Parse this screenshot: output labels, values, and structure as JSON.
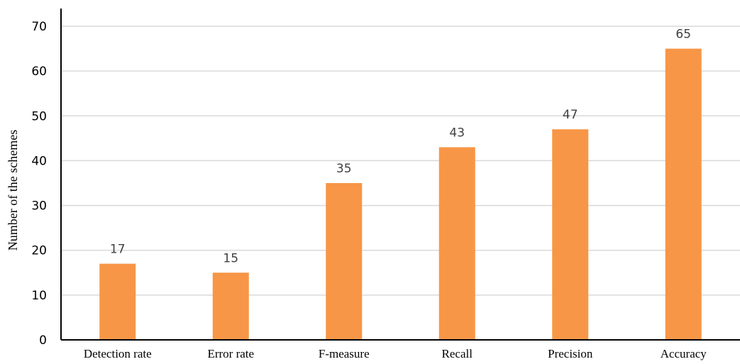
{
  "chart_data": {
    "type": "bar",
    "categories": [
      "Detection rate",
      "Error rate",
      "F-measure",
      "Recall",
      "Precision",
      "Accuracy"
    ],
    "values": [
      17,
      15,
      35,
      43,
      47,
      65
    ],
    "data_labels": [
      "17",
      "15",
      "35",
      "43",
      "47",
      "65"
    ],
    "title": "",
    "xlabel": "",
    "ylabel": "Number of the schemes",
    "ylim": [
      0,
      70
    ],
    "yticks": [
      0,
      10,
      20,
      30,
      40,
      50,
      60,
      70
    ],
    "grid": true,
    "legend": "none",
    "colors": {
      "bar": "#F79646",
      "grid": "#D9D9D9",
      "axis": "#000000",
      "data_label": "#404040"
    }
  }
}
